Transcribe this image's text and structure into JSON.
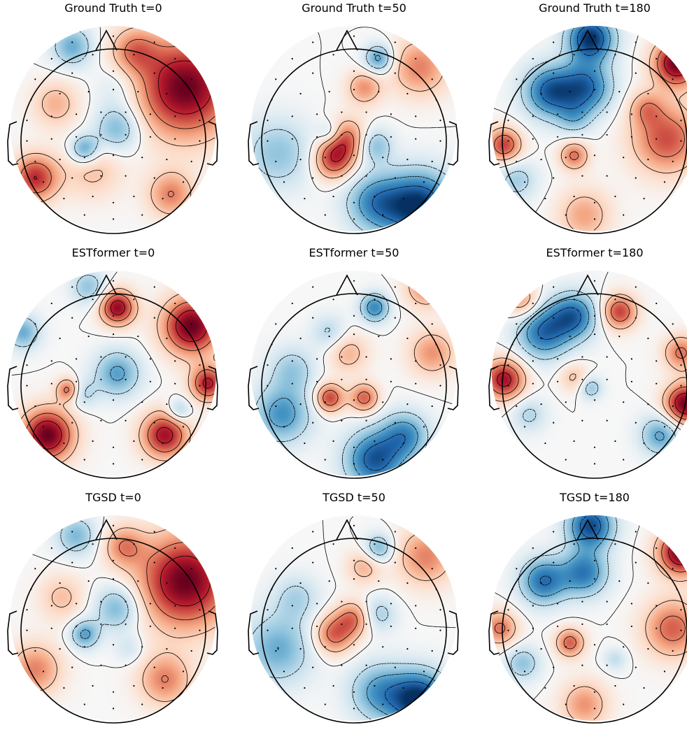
{
  "figure": {
    "colormap": [
      "#053061",
      "#2166ac",
      "#4393c3",
      "#92c5de",
      "#d1e5f0",
      "#f7f7f7",
      "#fddbc7",
      "#f4a582",
      "#d6604d",
      "#b2182b",
      "#67001f"
    ],
    "head_outline_color": "#000000",
    "sensor_color": "#000000",
    "contours": "solid lines positive, dashed lines negative"
  },
  "chart_data": [
    {
      "type": "heatmap",
      "kind": "eeg-topomap",
      "title": "Ground Truth t=0",
      "sources": [
        {
          "x": 0.85,
          "y": 0.3,
          "v": 1.0,
          "s": 0.17
        },
        {
          "x": 0.6,
          "y": 0.12,
          "v": 0.45,
          "s": 0.08
        },
        {
          "x": 0.12,
          "y": 0.74,
          "v": 0.75,
          "s": 0.08
        },
        {
          "x": 0.22,
          "y": 0.38,
          "v": 0.35,
          "s": 0.08
        },
        {
          "x": 0.4,
          "y": 0.7,
          "v": 0.3,
          "s": 0.1
        },
        {
          "x": 0.78,
          "y": 0.82,
          "v": 0.5,
          "s": 0.08
        },
        {
          "x": 0.36,
          "y": 0.6,
          "v": -0.6,
          "s": 0.05
        },
        {
          "x": 0.52,
          "y": 0.5,
          "v": -0.5,
          "s": 0.08
        },
        {
          "x": 0.3,
          "y": 0.1,
          "v": -0.5,
          "s": 0.07
        },
        {
          "x": 0.52,
          "y": 0.3,
          "v": -0.2,
          "s": 0.08
        }
      ]
    },
    {
      "type": "heatmap",
      "kind": "eeg-topomap",
      "title": "Ground Truth t=50",
      "sources": [
        {
          "x": 0.82,
          "y": 0.88,
          "v": -1.0,
          "s": 0.12
        },
        {
          "x": 0.6,
          "y": 0.86,
          "v": -0.6,
          "s": 0.1
        },
        {
          "x": 0.13,
          "y": 0.62,
          "v": -0.4,
          "s": 0.12
        },
        {
          "x": 0.62,
          "y": 0.16,
          "v": -0.6,
          "s": 0.05
        },
        {
          "x": 0.4,
          "y": 0.65,
          "v": 0.7,
          "s": 0.07
        },
        {
          "x": 0.47,
          "y": 0.55,
          "v": 0.55,
          "s": 0.07
        },
        {
          "x": 0.55,
          "y": 0.3,
          "v": 0.45,
          "s": 0.06
        },
        {
          "x": 0.82,
          "y": 0.2,
          "v": 0.5,
          "s": 0.1
        },
        {
          "x": 0.6,
          "y": 0.58,
          "v": -0.45,
          "s": 0.06
        },
        {
          "x": 0.38,
          "y": 0.52,
          "v": -0.3,
          "s": 0.04
        }
      ]
    },
    {
      "type": "heatmap",
      "kind": "eeg-topomap",
      "title": "Ground Truth t=180",
      "sources": [
        {
          "x": 0.9,
          "y": 0.18,
          "v": 1.0,
          "s": 0.08
        },
        {
          "x": 0.85,
          "y": 0.55,
          "v": 0.65,
          "s": 0.12
        },
        {
          "x": 0.06,
          "y": 0.58,
          "v": 0.7,
          "s": 0.06
        },
        {
          "x": 0.4,
          "y": 0.63,
          "v": 0.55,
          "s": 0.05
        },
        {
          "x": 0.45,
          "y": 0.92,
          "v": 0.4,
          "s": 0.09
        },
        {
          "x": 0.75,
          "y": 0.4,
          "v": 0.35,
          "s": 0.06
        },
        {
          "x": 0.48,
          "y": 0.06,
          "v": -1.0,
          "s": 0.08
        },
        {
          "x": 0.28,
          "y": 0.32,
          "v": -0.8,
          "s": 0.09
        },
        {
          "x": 0.46,
          "y": 0.3,
          "v": -0.75,
          "s": 0.09
        },
        {
          "x": 0.4,
          "y": 0.45,
          "v": -0.3,
          "s": 0.06
        },
        {
          "x": 0.12,
          "y": 0.75,
          "v": -0.35,
          "s": 0.07
        }
      ]
    },
    {
      "type": "heatmap",
      "kind": "eeg-topomap",
      "title": "ESTformer t=0",
      "sources": [
        {
          "x": 0.88,
          "y": 0.27,
          "v": 1.0,
          "s": 0.1
        },
        {
          "x": 0.96,
          "y": 0.55,
          "v": 0.8,
          "s": 0.06
        },
        {
          "x": 0.18,
          "y": 0.8,
          "v": 1.0,
          "s": 0.09
        },
        {
          "x": 0.75,
          "y": 0.8,
          "v": 0.85,
          "s": 0.08
        },
        {
          "x": 0.52,
          "y": 0.18,
          "v": 0.9,
          "s": 0.06
        },
        {
          "x": 0.28,
          "y": 0.58,
          "v": 0.6,
          "s": 0.04
        },
        {
          "x": 0.06,
          "y": 0.3,
          "v": -0.5,
          "s": 0.06
        },
        {
          "x": 0.52,
          "y": 0.5,
          "v": -0.55,
          "s": 0.08
        },
        {
          "x": 0.82,
          "y": 0.68,
          "v": -0.4,
          "s": 0.04
        },
        {
          "x": 0.38,
          "y": 0.08,
          "v": -0.4,
          "s": 0.06
        },
        {
          "x": 0.35,
          "y": 0.6,
          "v": -0.3,
          "s": 0.05
        }
      ]
    },
    {
      "type": "heatmap",
      "kind": "eeg-topomap",
      "title": "ESTformer t=50",
      "sources": [
        {
          "x": 0.6,
          "y": 0.92,
          "v": -0.85,
          "s": 0.1
        },
        {
          "x": 0.75,
          "y": 0.8,
          "v": -0.6,
          "s": 0.08
        },
        {
          "x": 0.15,
          "y": 0.7,
          "v": -0.6,
          "s": 0.1
        },
        {
          "x": 0.2,
          "y": 0.48,
          "v": -0.35,
          "s": 0.08
        },
        {
          "x": 0.6,
          "y": 0.18,
          "v": -0.65,
          "s": 0.05
        },
        {
          "x": 0.38,
          "y": 0.3,
          "v": -0.3,
          "s": 0.06
        },
        {
          "x": 0.38,
          "y": 0.62,
          "v": 0.7,
          "s": 0.05
        },
        {
          "x": 0.55,
          "y": 0.62,
          "v": 0.6,
          "s": 0.05
        },
        {
          "x": 0.47,
          "y": 0.4,
          "v": 0.35,
          "s": 0.07
        },
        {
          "x": 0.88,
          "y": 0.4,
          "v": 0.45,
          "s": 0.08
        },
        {
          "x": 0.85,
          "y": 0.08,
          "v": 0.5,
          "s": 0.07
        }
      ]
    },
    {
      "type": "heatmap",
      "kind": "eeg-topomap",
      "title": "ESTformer t=180",
      "sources": [
        {
          "x": 0.94,
          "y": 0.65,
          "v": 1.0,
          "s": 0.07
        },
        {
          "x": 0.06,
          "y": 0.53,
          "v": 0.85,
          "s": 0.07
        },
        {
          "x": 0.62,
          "y": 0.2,
          "v": 0.7,
          "s": 0.06
        },
        {
          "x": 0.92,
          "y": 0.4,
          "v": 0.55,
          "s": 0.06
        },
        {
          "x": 0.15,
          "y": 0.15,
          "v": 0.45,
          "s": 0.06
        },
        {
          "x": 0.4,
          "y": 0.52,
          "v": 0.3,
          "s": 0.05
        },
        {
          "x": 0.25,
          "y": 0.3,
          "v": -0.75,
          "s": 0.09
        },
        {
          "x": 0.4,
          "y": 0.22,
          "v": -0.75,
          "s": 0.08
        },
        {
          "x": 0.82,
          "y": 0.8,
          "v": -0.55,
          "s": 0.07
        },
        {
          "x": 0.48,
          "y": 0.57,
          "v": -0.4,
          "s": 0.04
        },
        {
          "x": 0.18,
          "y": 0.7,
          "v": -0.3,
          "s": 0.06
        }
      ]
    },
    {
      "type": "heatmap",
      "kind": "eeg-topomap",
      "title": "TGSD t=0",
      "sources": [
        {
          "x": 0.85,
          "y": 0.32,
          "v": 1.0,
          "s": 0.16
        },
        {
          "x": 0.55,
          "y": 0.15,
          "v": 0.45,
          "s": 0.07
        },
        {
          "x": 0.12,
          "y": 0.75,
          "v": 0.5,
          "s": 0.09
        },
        {
          "x": 0.75,
          "y": 0.8,
          "v": 0.5,
          "s": 0.09
        },
        {
          "x": 0.25,
          "y": 0.4,
          "v": 0.3,
          "s": 0.08
        },
        {
          "x": 0.36,
          "y": 0.58,
          "v": -0.55,
          "s": 0.05
        },
        {
          "x": 0.52,
          "y": 0.45,
          "v": -0.5,
          "s": 0.08
        },
        {
          "x": 0.32,
          "y": 0.1,
          "v": -0.45,
          "s": 0.07
        },
        {
          "x": 0.58,
          "y": 0.65,
          "v": -0.2,
          "s": 0.05
        }
      ]
    },
    {
      "type": "heatmap",
      "kind": "eeg-topomap",
      "title": "TGSD t=50",
      "sources": [
        {
          "x": 0.82,
          "y": 0.9,
          "v": -1.0,
          "s": 0.1
        },
        {
          "x": 0.62,
          "y": 0.86,
          "v": -0.55,
          "s": 0.1
        },
        {
          "x": 0.13,
          "y": 0.65,
          "v": -0.5,
          "s": 0.12
        },
        {
          "x": 0.22,
          "y": 0.4,
          "v": -0.3,
          "s": 0.08
        },
        {
          "x": 0.62,
          "y": 0.16,
          "v": -0.5,
          "s": 0.05
        },
        {
          "x": 0.62,
          "y": 0.48,
          "v": -0.35,
          "s": 0.06
        },
        {
          "x": 0.4,
          "y": 0.58,
          "v": 0.6,
          "s": 0.07
        },
        {
          "x": 0.5,
          "y": 0.5,
          "v": 0.5,
          "s": 0.06
        },
        {
          "x": 0.55,
          "y": 0.25,
          "v": 0.35,
          "s": 0.06
        },
        {
          "x": 0.85,
          "y": 0.2,
          "v": 0.5,
          "s": 0.1
        }
      ]
    },
    {
      "type": "heatmap",
      "kind": "eeg-topomap",
      "title": "TGSD t=180",
      "sources": [
        {
          "x": 0.92,
          "y": 0.18,
          "v": 1.0,
          "s": 0.08
        },
        {
          "x": 0.88,
          "y": 0.55,
          "v": 0.6,
          "s": 0.1
        },
        {
          "x": 0.04,
          "y": 0.55,
          "v": 0.55,
          "s": 0.06
        },
        {
          "x": 0.38,
          "y": 0.62,
          "v": 0.6,
          "s": 0.05
        },
        {
          "x": 0.45,
          "y": 0.92,
          "v": 0.45,
          "s": 0.08
        },
        {
          "x": 0.48,
          "y": 0.05,
          "v": -0.9,
          "s": 0.08
        },
        {
          "x": 0.25,
          "y": 0.32,
          "v": -0.75,
          "s": 0.08
        },
        {
          "x": 0.45,
          "y": 0.28,
          "v": -0.7,
          "s": 0.08
        },
        {
          "x": 0.15,
          "y": 0.72,
          "v": -0.4,
          "s": 0.06
        },
        {
          "x": 0.6,
          "y": 0.7,
          "v": -0.25,
          "s": 0.04
        }
      ]
    }
  ]
}
